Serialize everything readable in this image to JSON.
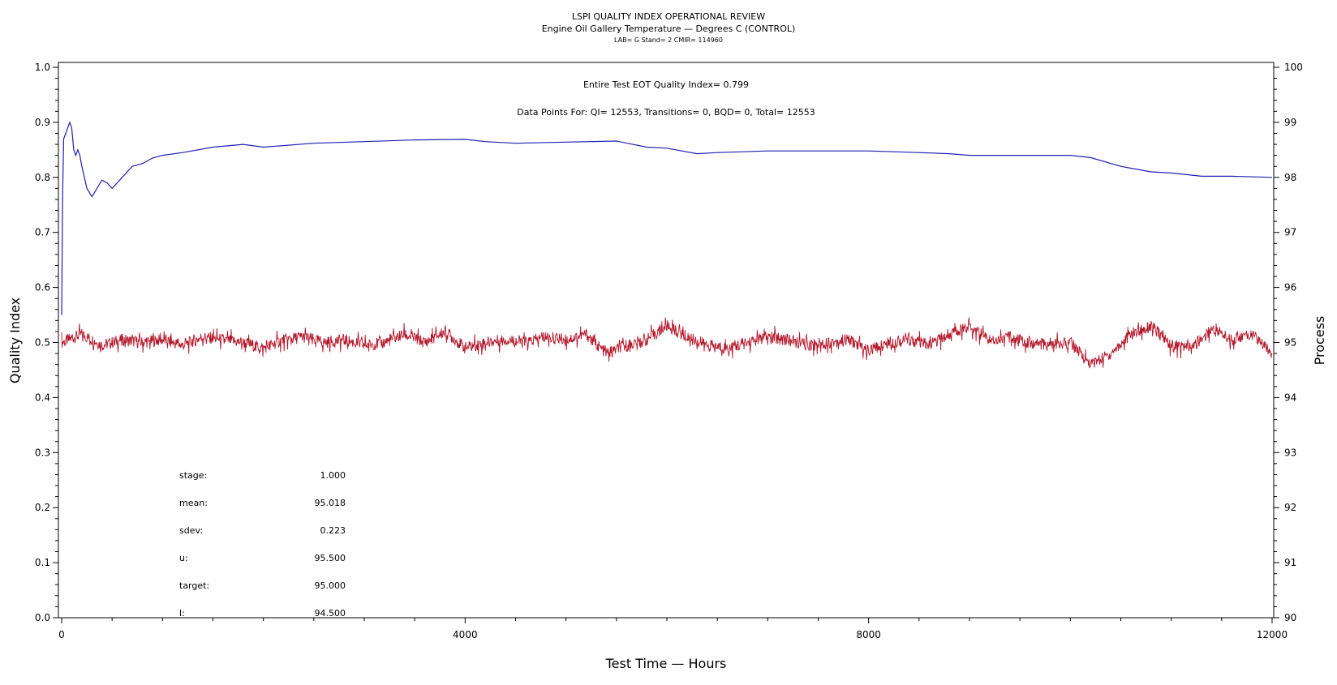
{
  "chart_data": {
    "type": "line",
    "title": "LSPI QUALITY INDEX OPERATIONAL REVIEW",
    "subtitle": "Engine Oil Gallery Temperature — Degrees C (CONTROL)",
    "subtitle2": "LAB= G Stand= 2 CMIR= 114960",
    "xlabel": "Test Time — Hours",
    "ylabel_left": "Quality Index",
    "ylabel_right": "Process",
    "xlim": [
      0,
      12000
    ],
    "ylim_left": [
      0.0,
      1.0
    ],
    "ylim_right": [
      90,
      100
    ],
    "x_ticks": [
      "0",
      "4000",
      "8000",
      "12000"
    ],
    "y_left_ticks": [
      "0.0",
      "0.1",
      "0.2",
      "0.3",
      "0.4",
      "0.5",
      "0.6",
      "0.7",
      "0.8",
      "0.9",
      "1.0"
    ],
    "y_right_ticks": [
      "90",
      "91",
      "92",
      "93",
      "94",
      "95",
      "96",
      "97",
      "98",
      "99",
      "100"
    ],
    "annotation_qi": "Entire Test EOT Quality Index=   0.799",
    "annotation_points": "Data Points For: QI= 12553, Transitions=     0, BQD=     0, Total= 12553",
    "series": [
      {
        "axis": "left",
        "color": "#1f1fb4",
        "x": [
          0,
          10,
          20,
          40,
          60,
          80,
          100,
          120,
          140,
          160,
          180,
          200,
          250,
          300,
          350,
          400,
          450,
          500,
          600,
          700,
          800,
          900,
          1000,
          1200,
          1500,
          1800,
          2000,
          2500,
          3000,
          3500,
          4000,
          4200,
          4500,
          5000,
          5500,
          5800,
          6000,
          6300,
          6500,
          7000,
          7500,
          8000,
          8500,
          8800,
          9000,
          9500,
          10000,
          10200,
          10500,
          10800,
          11000,
          11300,
          11600,
          12000
        ],
        "values": [
          0.55,
          0.77,
          0.87,
          0.88,
          0.89,
          0.9,
          0.89,
          0.85,
          0.84,
          0.85,
          0.84,
          0.82,
          0.78,
          0.765,
          0.78,
          0.795,
          0.79,
          0.78,
          0.8,
          0.82,
          0.825,
          0.835,
          0.84,
          0.845,
          0.855,
          0.86,
          0.855,
          0.862,
          0.865,
          0.868,
          0.869,
          0.865,
          0.862,
          0.864,
          0.866,
          0.855,
          0.853,
          0.843,
          0.845,
          0.848,
          0.848,
          0.848,
          0.845,
          0.843,
          0.84,
          0.84,
          0.84,
          0.836,
          0.82,
          0.81,
          0.808,
          0.802,
          0.802,
          0.8
        ]
      },
      {
        "axis": "right",
        "color": "#b4172a",
        "x": [
          0,
          200,
          400,
          600,
          800,
          1000,
          1200,
          1400,
          1600,
          1800,
          2000,
          2200,
          2400,
          2600,
          2800,
          3000,
          3200,
          3400,
          3600,
          3800,
          4000,
          4200,
          4400,
          4600,
          4800,
          5000,
          5200,
          5400,
          5600,
          5800,
          6000,
          6200,
          6400,
          6600,
          6800,
          7000,
          7200,
          7400,
          7600,
          7800,
          8000,
          8200,
          8400,
          8600,
          8800,
          9000,
          9200,
          9400,
          9600,
          9800,
          10000,
          10200,
          10400,
          10600,
          10800,
          11000,
          11200,
          11400,
          11600,
          11800,
          12000
        ],
        "values": [
          95.0,
          95.15,
          94.95,
          95.05,
          95.0,
          95.05,
          94.95,
          95.1,
          95.05,
          95.0,
          94.9,
          95.05,
          95.1,
          95.0,
          95.05,
          94.95,
          95.0,
          95.15,
          95.0,
          95.2,
          94.9,
          95.0,
          95.05,
          95.0,
          95.1,
          95.05,
          95.15,
          94.8,
          94.95,
          95.05,
          95.3,
          95.1,
          94.95,
          94.9,
          95.0,
          95.1,
          95.05,
          94.95,
          95.0,
          95.05,
          94.85,
          95.0,
          95.05,
          94.95,
          95.15,
          95.3,
          95.05,
          95.1,
          95.0,
          94.95,
          95.0,
          94.6,
          94.8,
          95.15,
          95.3,
          94.95,
          94.9,
          95.25,
          95.05,
          95.15,
          94.8
        ]
      }
    ],
    "stats": [
      {
        "label": "stage:",
        "value": "1.000"
      },
      {
        "label": "mean:",
        "value": "95.018"
      },
      {
        "label": "sdev:",
        "value": "0.223"
      },
      {
        "label": "u:",
        "value": "95.500"
      },
      {
        "label": "target:",
        "value": "95.000"
      },
      {
        "label": "l:",
        "value": "94.500"
      }
    ]
  }
}
